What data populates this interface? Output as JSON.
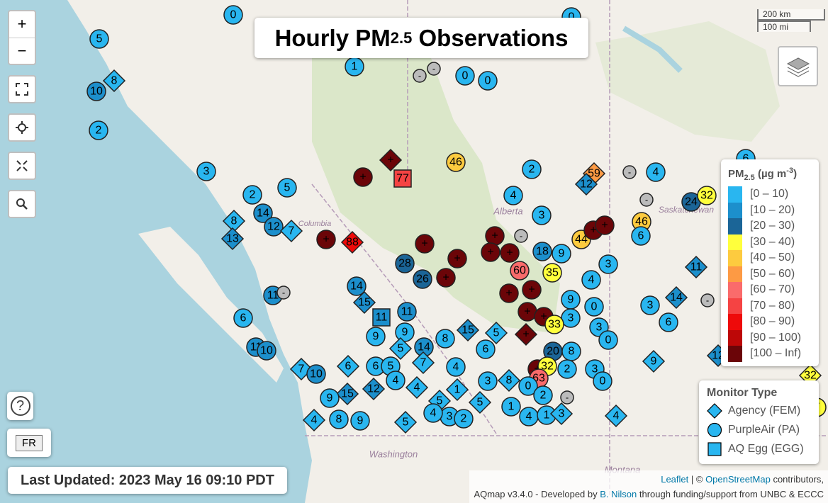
{
  "title": {
    "main": "Hourly PM",
    "sub": "2.5",
    "rest": " Observations"
  },
  "controls": {
    "zoom_in": "+",
    "zoom_out": "−",
    "help": "?",
    "lang": "FR"
  },
  "scale": {
    "km": "200 km",
    "mi": "100 mi"
  },
  "legend": {
    "title_main": "PM",
    "title_sub": "2.5",
    "title_unit": " (µg m",
    "title_exp": "-3",
    "title_close": ")",
    "bins": [
      {
        "label": "[0 – 10)",
        "color": "#29b6f0"
      },
      {
        "label": "[10 – 20)",
        "color": "#1c8fcc"
      },
      {
        "label": "[20 – 30)",
        "color": "#1b6597"
      },
      {
        "label": "[30 – 40)",
        "color": "#ffff3c"
      },
      {
        "label": "[40 – 50)",
        "color": "#fdcb3f"
      },
      {
        "label": "[50 – 60)",
        "color": "#fd9a44"
      },
      {
        "label": "[60 – 70)",
        "color": "#fa6b6b"
      },
      {
        "label": "[70 – 80)",
        "color": "#f54343"
      },
      {
        "label": "[80 – 90)",
        "color": "#ee0a0a"
      },
      {
        "label": "[90 – 100)",
        "color": "#bd0707"
      },
      {
        "label": "[100 – Inf)",
        "color": "#6b0508"
      }
    ]
  },
  "monitor_legend": {
    "title": "Monitor Type",
    "items": [
      "Agency (FEM)",
      "PurpleAir (PA)",
      "AQ Egg (EGG)"
    ]
  },
  "map_labels": [
    "Alberta",
    "Saskatchewan",
    "Columbia",
    "Washington",
    "Montana"
  ],
  "last_updated": "Last Updated: 2023 May 16 09:10 PDT",
  "attribution": {
    "leaflet": "Leaflet",
    "sep": " | © ",
    "osm": "OpenStreetMap",
    "contrib": " contributors,",
    "line2_a": "AQmap v3.4.0 - Developed by ",
    "author": "B. Nilson",
    "line2_b": " through funding/support from UNBC & ECCC"
  },
  "markers": [
    "0",
    "0",
    "5",
    "8",
    "10",
    "2",
    "1",
    "-",
    "-",
    "0",
    "0",
    "3",
    "5",
    "2",
    "14",
    "12",
    "7",
    "8",
    "13",
    "+",
    "88",
    "+",
    "77",
    "+",
    "46",
    "2",
    "4",
    "59",
    "12",
    "-",
    "4",
    "-",
    "24",
    "32",
    "6",
    "46",
    "6",
    "+",
    "28",
    "26",
    "+",
    "+",
    "+",
    "+",
    "+",
    "3",
    "-",
    "60",
    "35",
    "44",
    "+",
    "+",
    "9",
    "18",
    "3",
    "4",
    "14",
    "15",
    "11",
    "11",
    "11",
    "-",
    "6",
    "11",
    "10",
    "+",
    "+",
    "+",
    "+",
    "+",
    "9",
    "0",
    "3",
    "33",
    "3",
    "0",
    "3",
    "6",
    "14",
    "-",
    "11",
    "9",
    "4",
    "9",
    "9",
    "15",
    "5",
    "8",
    "6",
    "5",
    "14",
    "20",
    "8",
    "+",
    "32",
    "63",
    "2",
    "3",
    "0",
    "6",
    "5",
    "7",
    "4",
    "3",
    "8",
    "0",
    "2",
    "-",
    "4",
    "4",
    "1",
    "5",
    "5",
    "7",
    "10",
    "6",
    "12",
    "15",
    "9",
    "4",
    "8",
    "9",
    "5",
    "3",
    "2",
    "1",
    "4",
    "1",
    "3",
    "4",
    "12",
    "32",
    "7"
  ]
}
